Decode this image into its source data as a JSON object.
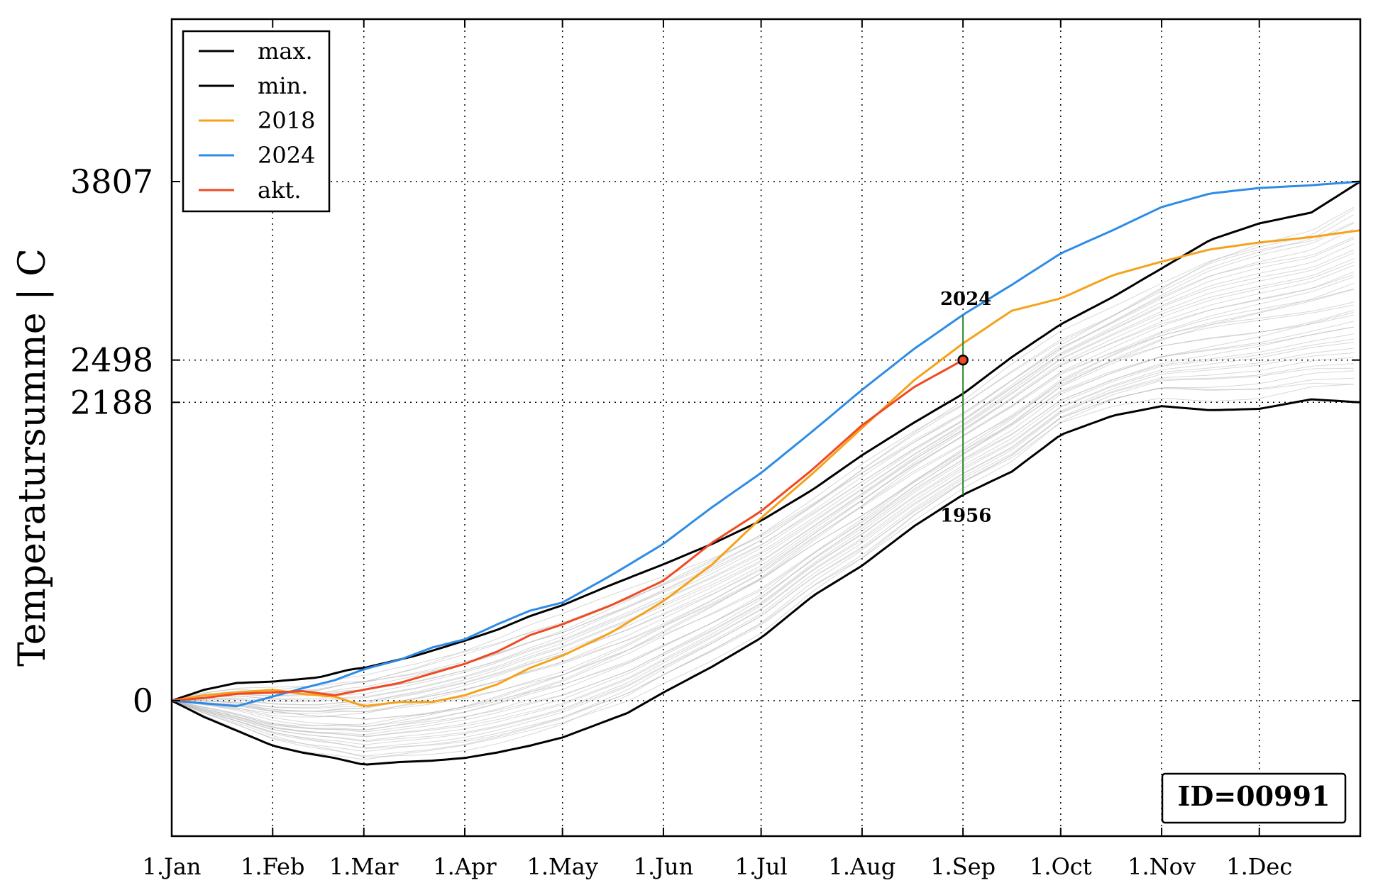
{
  "chart_data": {
    "type": "line",
    "xlabel": "",
    "ylabel": "Temperatursumme | C",
    "x_domain_days": [
      0,
      365
    ],
    "ylim": [
      -1000,
      4800
    ],
    "x_ticks": [
      {
        "label": "1.Jan",
        "day": 0
      },
      {
        "label": "1.Feb",
        "day": 31
      },
      {
        "label": "1.Mar",
        "day": 59
      },
      {
        "label": "1.Apr",
        "day": 90
      },
      {
        "label": "1.May",
        "day": 120
      },
      {
        "label": "1.Jun",
        "day": 151
      },
      {
        "label": "1.Jul",
        "day": 181
      },
      {
        "label": "1.Aug",
        "day": 212
      },
      {
        "label": "1.Sep",
        "day": 243
      },
      {
        "label": "1.Oct",
        "day": 273
      },
      {
        "label": "1.Nov",
        "day": 304
      },
      {
        "label": "1.Dec",
        "day": 334
      }
    ],
    "y_ticks": [
      {
        "label": "0",
        "value": 0
      },
      {
        "label": "2188",
        "value": 2188
      },
      {
        "label": "2498",
        "value": 2498
      },
      {
        "label": "3807",
        "value": 3807
      }
    ],
    "grid": true,
    "legend_position": "top-left",
    "series": [
      {
        "name": "max.",
        "color": "#000000",
        "points": [
          [
            0,
            0
          ],
          [
            10,
            80
          ],
          [
            20,
            130
          ],
          [
            31,
            140
          ],
          [
            45,
            170
          ],
          [
            55,
            230
          ],
          [
            59,
            240
          ],
          [
            75,
            330
          ],
          [
            90,
            440
          ],
          [
            100,
            520
          ],
          [
            110,
            620
          ],
          [
            120,
            700
          ],
          [
            135,
            850
          ],
          [
            151,
            1000
          ],
          [
            166,
            1150
          ],
          [
            181,
            1320
          ],
          [
            197,
            1550
          ],
          [
            212,
            1800
          ],
          [
            228,
            2040
          ],
          [
            243,
            2250
          ],
          [
            258,
            2520
          ],
          [
            273,
            2760
          ],
          [
            289,
            2960
          ],
          [
            304,
            3170
          ],
          [
            319,
            3380
          ],
          [
            334,
            3500
          ],
          [
            350,
            3580
          ],
          [
            365,
            3807
          ]
        ]
      },
      {
        "name": "min.",
        "color": "#000000",
        "points": [
          [
            0,
            0
          ],
          [
            10,
            -120
          ],
          [
            20,
            -220
          ],
          [
            31,
            -330
          ],
          [
            40,
            -380
          ],
          [
            50,
            -420
          ],
          [
            59,
            -470
          ],
          [
            70,
            -450
          ],
          [
            80,
            -440
          ],
          [
            90,
            -420
          ],
          [
            100,
            -380
          ],
          [
            110,
            -330
          ],
          [
            120,
            -270
          ],
          [
            130,
            -180
          ],
          [
            140,
            -90
          ],
          [
            151,
            60
          ],
          [
            166,
            250
          ],
          [
            181,
            460
          ],
          [
            197,
            770
          ],
          [
            212,
            990
          ],
          [
            228,
            1280
          ],
          [
            243,
            1510
          ],
          [
            258,
            1680
          ],
          [
            273,
            1950
          ],
          [
            289,
            2090
          ],
          [
            304,
            2160
          ],
          [
            319,
            2130
          ],
          [
            334,
            2140
          ],
          [
            350,
            2210
          ],
          [
            365,
            2188
          ]
        ]
      },
      {
        "name": "2018",
        "color": "#f5a21b",
        "points": [
          [
            0,
            0
          ],
          [
            10,
            40
          ],
          [
            20,
            60
          ],
          [
            31,
            80
          ],
          [
            40,
            50
          ],
          [
            50,
            30
          ],
          [
            59,
            -40
          ],
          [
            70,
            -10
          ],
          [
            80,
            -10
          ],
          [
            90,
            40
          ],
          [
            100,
            120
          ],
          [
            110,
            240
          ],
          [
            120,
            330
          ],
          [
            135,
            500
          ],
          [
            151,
            730
          ],
          [
            166,
            1000
          ],
          [
            181,
            1340
          ],
          [
            197,
            1670
          ],
          [
            212,
            2000
          ],
          [
            228,
            2350
          ],
          [
            243,
            2620
          ],
          [
            258,
            2860
          ],
          [
            273,
            2950
          ],
          [
            289,
            3120
          ],
          [
            304,
            3220
          ],
          [
            319,
            3310
          ],
          [
            334,
            3360
          ],
          [
            350,
            3400
          ],
          [
            365,
            3450
          ]
        ]
      },
      {
        "name": "2024",
        "color": "#2e8ce6",
        "points": [
          [
            0,
            0
          ],
          [
            10,
            -20
          ],
          [
            20,
            -40
          ],
          [
            31,
            30
          ],
          [
            40,
            90
          ],
          [
            50,
            150
          ],
          [
            59,
            230
          ],
          [
            70,
            300
          ],
          [
            80,
            390
          ],
          [
            90,
            450
          ],
          [
            100,
            560
          ],
          [
            110,
            660
          ],
          [
            120,
            720
          ],
          [
            135,
            920
          ],
          [
            151,
            1150
          ],
          [
            166,
            1420
          ],
          [
            181,
            1670
          ],
          [
            197,
            1980
          ],
          [
            212,
            2280
          ],
          [
            228,
            2580
          ],
          [
            243,
            2830
          ],
          [
            258,
            3050
          ],
          [
            273,
            3280
          ],
          [
            289,
            3450
          ],
          [
            304,
            3620
          ],
          [
            319,
            3720
          ],
          [
            334,
            3760
          ],
          [
            350,
            3780
          ],
          [
            365,
            3807
          ]
        ]
      },
      {
        "name": "akt.",
        "color": "#ef4a23",
        "points": [
          [
            0,
            0
          ],
          [
            10,
            20
          ],
          [
            20,
            50
          ],
          [
            31,
            60
          ],
          [
            40,
            70
          ],
          [
            50,
            40
          ],
          [
            59,
            80
          ],
          [
            70,
            130
          ],
          [
            80,
            200
          ],
          [
            90,
            270
          ],
          [
            100,
            360
          ],
          [
            110,
            480
          ],
          [
            120,
            560
          ],
          [
            135,
            700
          ],
          [
            151,
            880
          ],
          [
            166,
            1160
          ],
          [
            181,
            1390
          ],
          [
            197,
            1700
          ],
          [
            212,
            2020
          ],
          [
            228,
            2300
          ],
          [
            243,
            2498
          ]
        ]
      }
    ],
    "historical_years_note": "",
    "current_point": {
      "day": 243,
      "value": 2498,
      "color": "#ef4a23"
    },
    "range_marker": {
      "day": 243,
      "top_value": 2830,
      "bottom_value": 1510,
      "top_label": "2024",
      "bottom_label": "1956",
      "color": "#2a8a2a"
    },
    "id_box": {
      "label": "ID=00991"
    }
  }
}
